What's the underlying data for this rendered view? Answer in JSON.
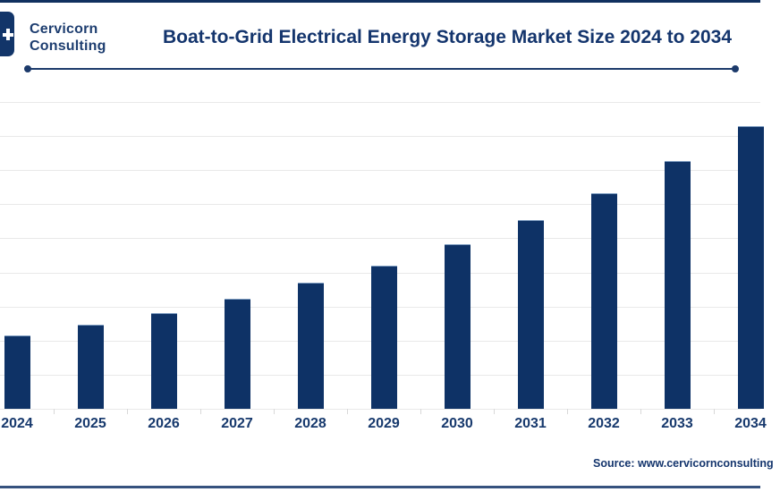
{
  "brand": {
    "name_line1": "Cervicorn",
    "name_line2": "Consulting"
  },
  "header": {
    "title": "Boat-to-Grid Electrical Energy Storage Market Size 2024 to 2034"
  },
  "source": {
    "text": "Source: www.cervicornconsulting"
  },
  "colors": {
    "bar": "#0e3266",
    "bar_top_edge": "#7d9cc0",
    "navy_text": "#14356d",
    "axis_label": "#17396d",
    "gridline": "#e9e9e9",
    "top_rule": "#10305f",
    "bottom_rule": "#36527e",
    "title_rule": "#1c3a6b"
  },
  "chart_data": {
    "type": "bar",
    "title": "Boat-to-Grid Electrical Energy Storage Market Size 2024 to 2034",
    "categories": [
      "2024",
      "2025",
      "2026",
      "2027",
      "2028",
      "2029",
      "2030",
      "2031",
      "2032",
      "2033",
      "2034"
    ],
    "values": [
      2.12,
      2.44,
      2.78,
      3.19,
      3.67,
      4.17,
      4.8,
      5.52,
      6.31,
      7.24,
      8.27
    ],
    "value_note": "y-axis is unlabeled in the image; values estimated in gridline units (1 unit = one horizontal gridline interval), implying ~14.5% year-over-year growth",
    "xlabel": "",
    "ylabel": "",
    "ylim": [
      0,
      9
    ],
    "gridline_count": 10,
    "grid": true,
    "legend": false
  }
}
